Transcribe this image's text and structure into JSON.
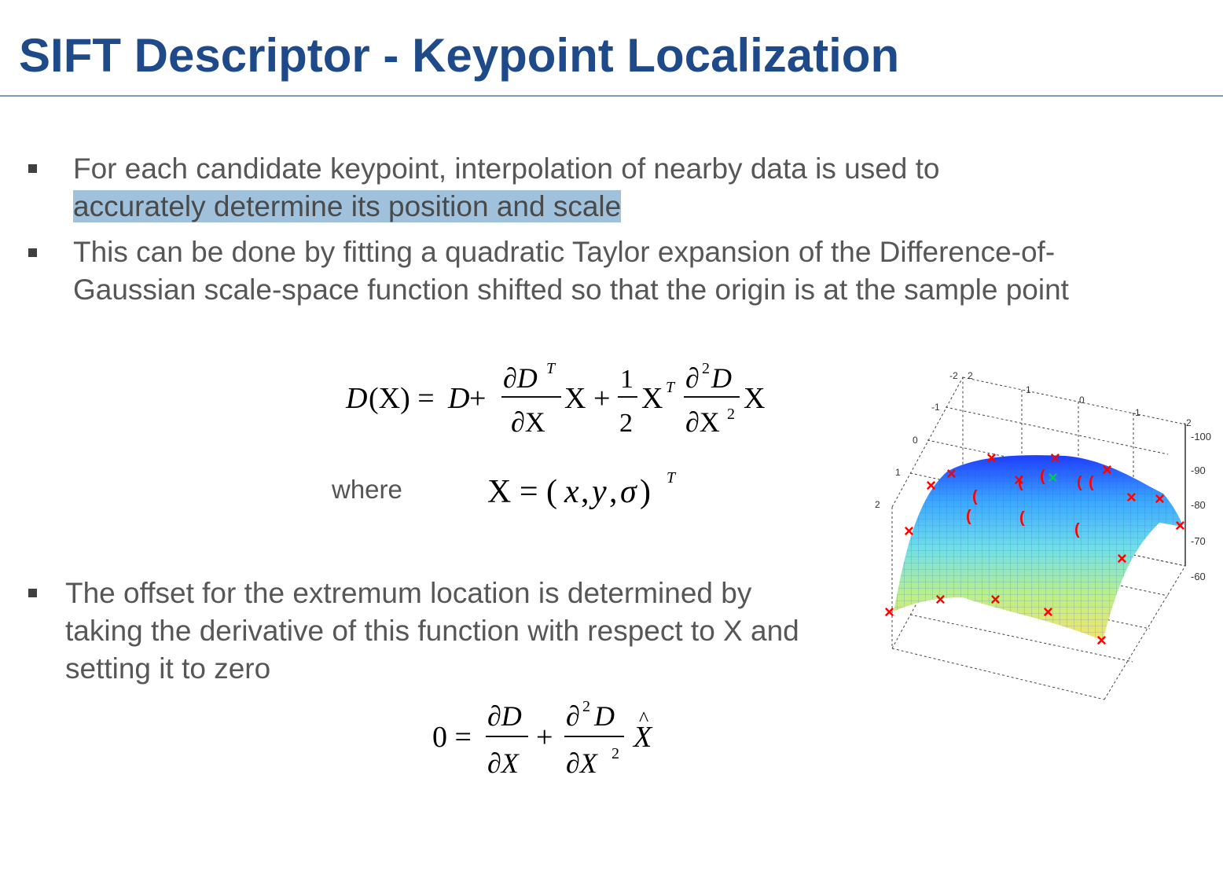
{
  "slide": {
    "title": "SIFT Descriptor - Keypoint Localization"
  },
  "bullets": [
    {
      "line1": "For each candidate keypoint, interpolation of nearby data is used to",
      "line2": "accurately determine its position and scale"
    },
    {
      "line1": "This can be done by fitting a quadratic Taylor expansion of the Difference-of-",
      "line2": "Gaussian scale-space function shifted so that the origin is at the sample point"
    },
    {
      "line1": "The offset for the extremum location is determined by",
      "line2": "taking the derivative of this function with respect to X and",
      "line3": "setting it to zero"
    }
  ],
  "where_label": "where",
  "equations": {
    "taylor": "D(X) = D + (∂D^T/∂X) X + (1/2) X^T (∂²D/∂X²) X",
    "x_def": "X = (x, y, σ)^T",
    "offset": "0 = ∂D/∂X + (∂²D/∂X²) X̂"
  },
  "plot_axes": {
    "x_ticks": [
      "2",
      "1",
      "0",
      "-1",
      "-2"
    ],
    "y_ticks": [
      "-2",
      "-1",
      "0",
      "1",
      "2"
    ],
    "z_ticks": [
      "-100",
      "-90",
      "-80",
      "-70",
      "-60"
    ]
  },
  "colors": {
    "title": "#1f4a8a",
    "text": "#575757",
    "highlight": "#9fc1dc",
    "marker_red": "#ff0000",
    "marker_green": "#00cc44"
  }
}
